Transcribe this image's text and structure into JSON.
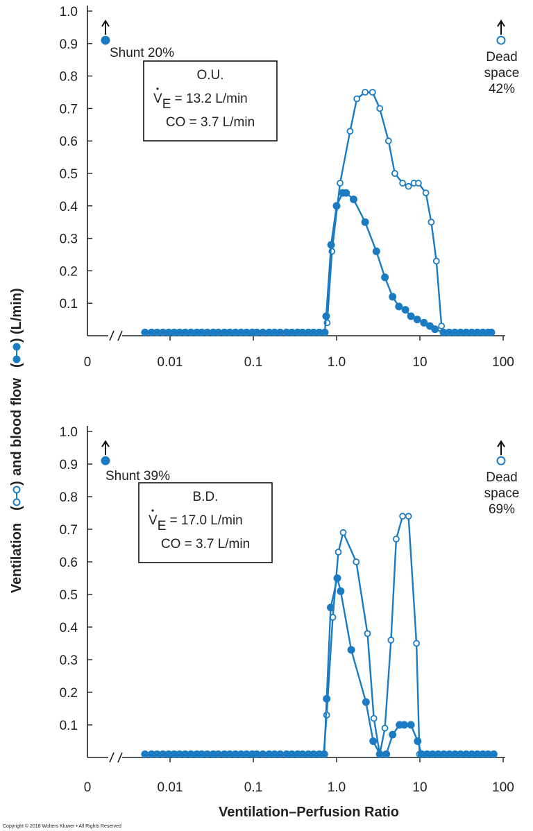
{
  "colors": {
    "series": "#1b7bc2",
    "axis": "#222222"
  },
  "y_axis_label": {
    "part1": "Ventilation",
    "part2": "and blood flow",
    "part3": "(L/min)"
  },
  "x_axis_label": "Ventilation–Perfusion Ratio",
  "copyright": "Copyright © 2018 Wolters Kluwer • All Rights Reserved",
  "chart_data": [
    {
      "type": "line",
      "subject": "O.U.",
      "box_lines": [
        "O.U.",
        "13.2 L/min",
        "CO = 3.7 L/min"
      ],
      "ve_prefix": "V",
      "ve_sub": "E",
      "ve_rest": " = 13.2 L/min",
      "shunt_label": "Shunt 20%",
      "dead_label_1": "Dead",
      "dead_label_2": "space",
      "dead_label_3": "42%",
      "x_scale": "log",
      "xlim": [
        0.001,
        100
      ],
      "x_ticks": [
        "0",
        "0.01",
        "0.1",
        "1.0",
        "10",
        "100"
      ],
      "ylim": [
        0,
        1.0
      ],
      "y_ticks": [
        "0.1",
        "0.2",
        "0.3",
        "0.4",
        "0.5",
        "0.6",
        "0.7",
        "0.8",
        "0.9",
        "1.0"
      ],
      "series": [
        {
          "marker": "open",
          "x": [
            0.77,
            0.88,
            1.1,
            1.45,
            1.75,
            2.2,
            2.7,
            3.3,
            4.2,
            5.0,
            6.2,
            7.3,
            8.5,
            9.6,
            11.8,
            13.7,
            15.8,
            18.2
          ],
          "y": [
            0.04,
            0.26,
            0.47,
            0.63,
            0.73,
            0.75,
            0.75,
            0.7,
            0.6,
            0.5,
            0.47,
            0.46,
            0.47,
            0.47,
            0.44,
            0.35,
            0.23,
            0.03
          ]
        },
        {
          "marker": "filled",
          "x": [
            0.005,
            0.006,
            0.007,
            0.0082,
            0.0096,
            0.0112,
            0.013,
            0.0152,
            0.0178,
            0.021,
            0.024,
            0.028,
            0.033,
            0.038,
            0.045,
            0.052,
            0.061,
            0.071,
            0.083,
            0.097,
            0.11,
            0.13,
            0.155,
            0.18,
            0.21,
            0.25,
            0.29,
            0.34,
            0.39,
            0.46,
            0.53,
            0.62,
            0.72,
            0.75,
            0.86,
            1.0,
            1.18,
            1.3,
            1.6,
            2.2,
            3.0,
            3.8,
            4.7,
            5.6,
            6.7,
            7.8,
            9.3,
            11.2,
            13.2,
            15.2,
            19.2,
            22.5,
            26.3,
            30.8,
            36,
            42,
            49,
            57,
            66,
            72
          ],
          "y": [
            0.01,
            0.01,
            0.01,
            0.01,
            0.01,
            0.01,
            0.01,
            0.01,
            0.01,
            0.01,
            0.01,
            0.01,
            0.01,
            0.01,
            0.01,
            0.01,
            0.01,
            0.01,
            0.01,
            0.01,
            0.01,
            0.01,
            0.01,
            0.01,
            0.01,
            0.01,
            0.01,
            0.01,
            0.01,
            0.01,
            0.01,
            0.01,
            0.01,
            0.06,
            0.28,
            0.4,
            0.44,
            0.44,
            0.42,
            0.35,
            0.26,
            0.18,
            0.12,
            0.09,
            0.08,
            0.06,
            0.05,
            0.04,
            0.03,
            0.02,
            0.01,
            0.01,
            0.01,
            0.01,
            0.01,
            0.01,
            0.01,
            0.01,
            0.01,
            0.01
          ]
        }
      ],
      "shunt_marker": {
        "x": 0.0022,
        "y": 0.94
      },
      "dead_marker": {
        "x": 70,
        "y": 0.94
      }
    },
    {
      "type": "line",
      "subject": "B.D.",
      "box_lines": [
        "B.D.",
        "17.0 L/min",
        "CO = 3.7 L/min"
      ],
      "ve_prefix": "V",
      "ve_sub": "E",
      "ve_rest": " = 17.0 L/min",
      "shunt_label": "Shunt 39%",
      "dead_label_1": "Dead",
      "dead_label_2": "space",
      "dead_label_3": "69%",
      "x_scale": "log",
      "xlim": [
        0.001,
        100
      ],
      "x_ticks": [
        "0",
        "0.01",
        "0.1",
        "1.0",
        "10",
        "100"
      ],
      "ylim": [
        0,
        1.0
      ],
      "y_ticks": [
        "0.1",
        "0.2",
        "0.3",
        "0.4",
        "0.5",
        "0.6",
        "0.7",
        "0.8",
        "0.9",
        "1.0"
      ],
      "series": [
        {
          "marker": "open",
          "x": [
            0.7,
            0.76,
            0.9,
            1.05,
            1.2,
            1.72,
            2.35,
            2.8,
            3.3,
            3.8,
            4.5,
            5.2,
            6.2,
            7.3,
            9.1,
            9.9
          ],
          "y": [
            0.01,
            0.13,
            0.43,
            0.63,
            0.69,
            0.6,
            0.38,
            0.12,
            0.01,
            0.09,
            0.36,
            0.67,
            0.74,
            0.74,
            0.35,
            0.01
          ]
        },
        {
          "marker": "filled",
          "x": [
            0.005,
            0.006,
            0.007,
            0.0082,
            0.0096,
            0.0112,
            0.013,
            0.0152,
            0.0178,
            0.021,
            0.024,
            0.028,
            0.033,
            0.038,
            0.045,
            0.052,
            0.061,
            0.071,
            0.083,
            0.097,
            0.11,
            0.13,
            0.155,
            0.18,
            0.21,
            0.25,
            0.29,
            0.34,
            0.39,
            0.46,
            0.53,
            0.62,
            0.71,
            0.76,
            0.85,
            1.02,
            1.12,
            1.5,
            2.25,
            2.75,
            3.3,
            3.95,
            4.7,
            5.7,
            6.5,
            7.8,
            9.4,
            10.5,
            12.2,
            14.2,
            16.6,
            19.4,
            22.6,
            26.4,
            30.8,
            36,
            42,
            49,
            57,
            66,
            77
          ],
          "y": [
            0.01,
            0.01,
            0.01,
            0.01,
            0.01,
            0.01,
            0.01,
            0.01,
            0.01,
            0.01,
            0.01,
            0.01,
            0.01,
            0.01,
            0.01,
            0.01,
            0.01,
            0.01,
            0.01,
            0.01,
            0.01,
            0.01,
            0.01,
            0.01,
            0.01,
            0.01,
            0.01,
            0.01,
            0.01,
            0.01,
            0.01,
            0.01,
            0.01,
            0.18,
            0.46,
            0.55,
            0.51,
            0.33,
            0.17,
            0.05,
            0.01,
            0.01,
            0.07,
            0.1,
            0.1,
            0.1,
            0.05,
            0.01,
            0.01,
            0.01,
            0.01,
            0.01,
            0.01,
            0.01,
            0.01,
            0.01,
            0.01,
            0.01,
            0.01,
            0.01,
            0.01
          ]
        }
      ],
      "shunt_marker": {
        "x": 0.002,
        "y": 0.94
      },
      "dead_marker": {
        "x": 72,
        "y": 0.94
      }
    }
  ]
}
